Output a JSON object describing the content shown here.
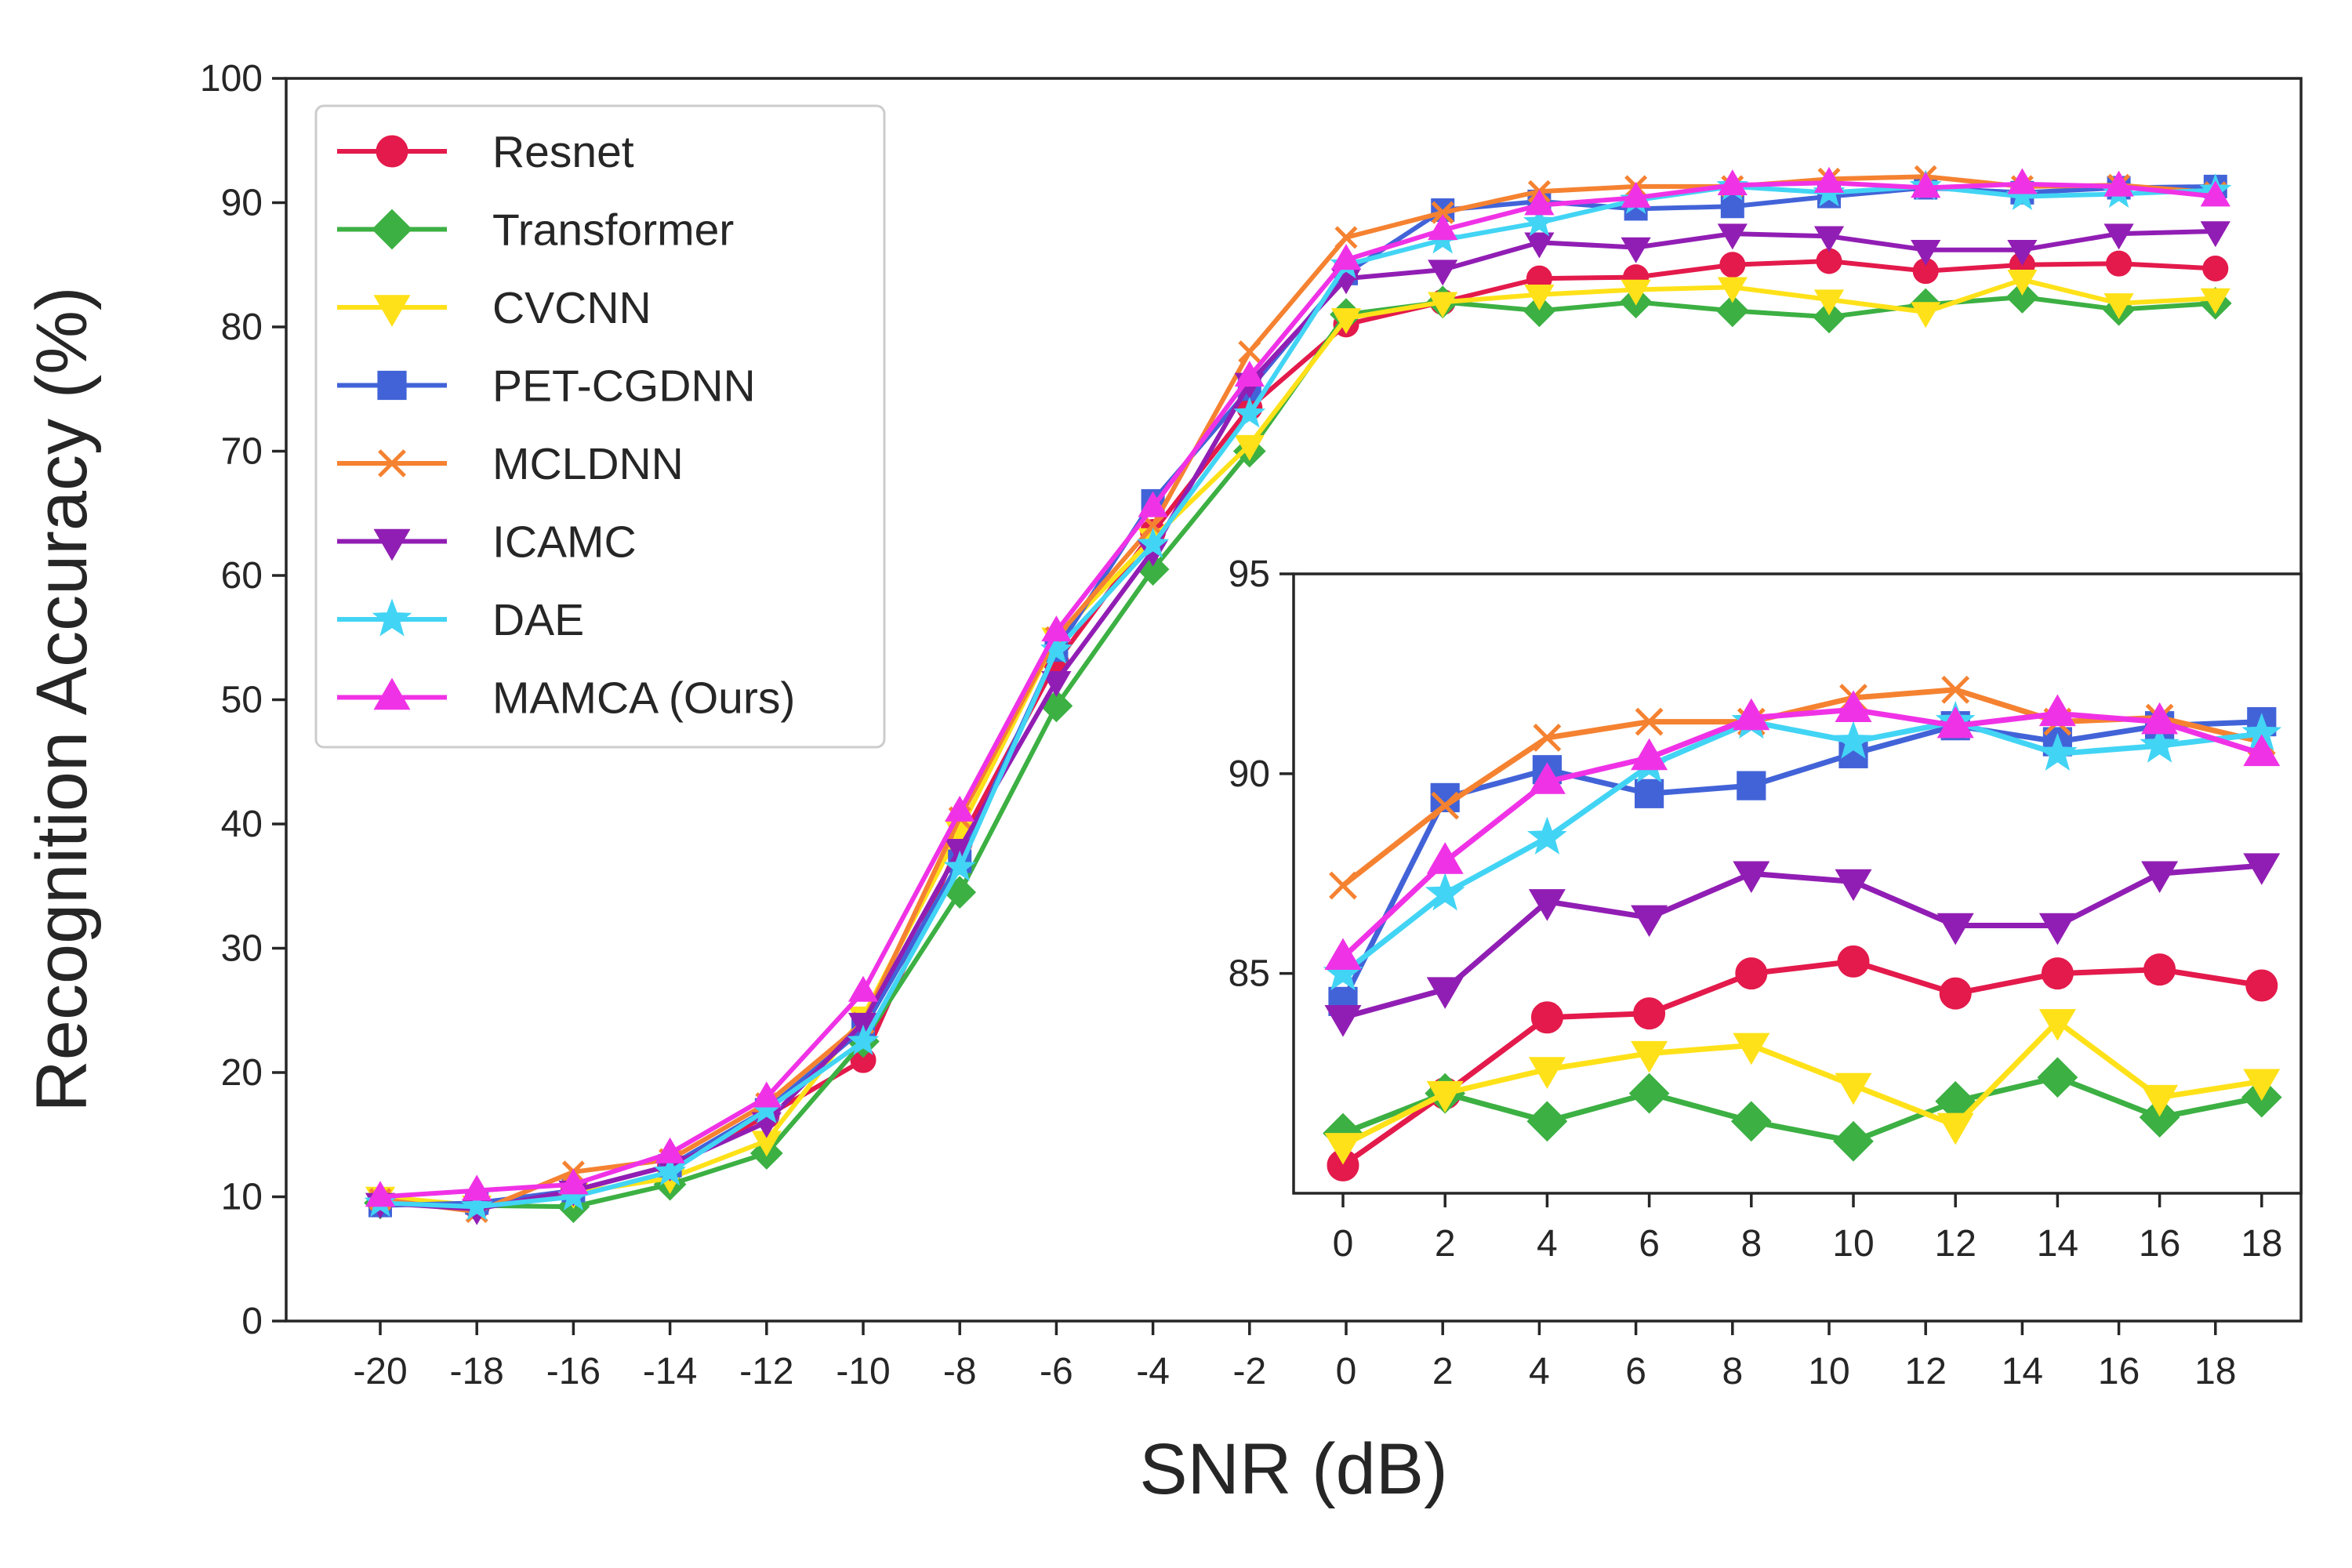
{
  "chart_data": {
    "type": "line",
    "title": "",
    "xlabel": "SNR (dB)",
    "ylabel": "Recognition Accuracy (%)",
    "xlim": [
      -20,
      18
    ],
    "ylim": [
      0,
      100
    ],
    "x": [
      -20,
      -18,
      -16,
      -14,
      -12,
      -10,
      -8,
      -6,
      -4,
      -2,
      0,
      2,
      4,
      6,
      8,
      10,
      12,
      14,
      16,
      18
    ],
    "x_tick_labels": [
      "-20",
      "-18",
      "-16",
      "-14",
      "-12",
      "-10",
      "-8",
      "-6",
      "-4",
      "-2",
      "0",
      "2",
      "4",
      "6",
      "8",
      "10",
      "12",
      "14",
      "16",
      "18"
    ],
    "y_ticks": [
      0,
      10,
      20,
      30,
      40,
      50,
      60,
      70,
      80,
      90,
      100
    ],
    "y_tick_labels": [
      "0",
      "10",
      "20",
      "30",
      "40",
      "50",
      "60",
      "70",
      "80",
      "90",
      "100"
    ],
    "legend_position": "upper-left",
    "series": [
      {
        "name": "Resnet",
        "color": "#e31a4b",
        "marker": "circle",
        "values": [
          9.7,
          9.2,
          10.5,
          12.5,
          16.5,
          21.0,
          38.5,
          53.0,
          63.5,
          73.5,
          80.2,
          82.0,
          83.9,
          84.0,
          85.0,
          85.3,
          84.5,
          85.0,
          85.1,
          84.7
        ]
      },
      {
        "name": "Transformer",
        "color": "#3cb043",
        "marker": "diamond",
        "values": [
          9.5,
          9.3,
          9.2,
          11.0,
          13.5,
          22.5,
          34.5,
          49.5,
          60.5,
          70.0,
          81.0,
          82.0,
          81.3,
          82.0,
          81.3,
          80.8,
          81.8,
          82.4,
          81.4,
          81.9
        ]
      },
      {
        "name": "CVCNN",
        "color": "#ffe119",
        "marker": "triangle-down",
        "values": [
          10.0,
          9.3,
          10.3,
          11.5,
          14.5,
          24.5,
          39.5,
          55.0,
          63.0,
          70.5,
          80.7,
          82.0,
          82.6,
          83.0,
          83.2,
          82.2,
          81.2,
          83.8,
          81.9,
          82.3
        ]
      },
      {
        "name": "PET-CGDNN",
        "color": "#4263d8",
        "marker": "square",
        "values": [
          9.3,
          9.5,
          10.5,
          12.5,
          17.0,
          23.5,
          37.0,
          54.0,
          66.0,
          75.0,
          84.3,
          89.4,
          90.1,
          89.5,
          89.7,
          90.5,
          91.2,
          90.8,
          91.2,
          91.3
        ]
      },
      {
        "name": "MCLDNN",
        "color": "#f58231",
        "marker": "x",
        "values": [
          9.8,
          8.8,
          12.0,
          13.0,
          17.5,
          24.0,
          40.5,
          55.0,
          64.0,
          78.0,
          87.2,
          89.2,
          90.9,
          91.3,
          91.3,
          91.9,
          92.1,
          91.3,
          91.4,
          90.8
        ]
      },
      {
        "name": "ICAMC",
        "color": "#911eb4",
        "marker": "triangle-down",
        "values": [
          9.5,
          9.0,
          10.5,
          12.5,
          16.0,
          24.0,
          38.0,
          51.5,
          62.0,
          75.5,
          83.9,
          84.6,
          86.8,
          86.4,
          87.5,
          87.3,
          86.2,
          86.2,
          87.5,
          87.7
        ]
      },
      {
        "name": "DAE",
        "color": "#42d4f4",
        "marker": "star",
        "values": [
          9.5,
          9.2,
          10.0,
          12.0,
          17.0,
          22.5,
          36.5,
          54.0,
          62.5,
          73.0,
          85.0,
          87.0,
          88.4,
          90.2,
          91.3,
          90.8,
          91.3,
          90.5,
          90.7,
          91.0
        ]
      },
      {
        "name": "MAMCA (Ours)",
        "color": "#f032e6",
        "marker": "triangle-up",
        "values": [
          10.0,
          10.5,
          11.0,
          13.5,
          18.0,
          26.5,
          41.0,
          55.5,
          65.5,
          76.0,
          85.4,
          87.8,
          89.8,
          90.4,
          91.4,
          91.6,
          91.2,
          91.5,
          91.3,
          90.5
        ]
      }
    ],
    "inset": {
      "xlim": [
        0,
        18
      ],
      "ylim": [
        79.5,
        95
      ],
      "x_ticks": [
        0,
        2,
        4,
        6,
        8,
        10,
        12,
        14,
        16,
        18
      ],
      "x_tick_labels": [
        "0",
        "2",
        "4",
        "6",
        "8",
        "10",
        "12",
        "14",
        "16",
        "18"
      ],
      "y_ticks": [
        85,
        90,
        95
      ],
      "y_tick_labels": [
        "85",
        "90",
        "95"
      ]
    }
  }
}
